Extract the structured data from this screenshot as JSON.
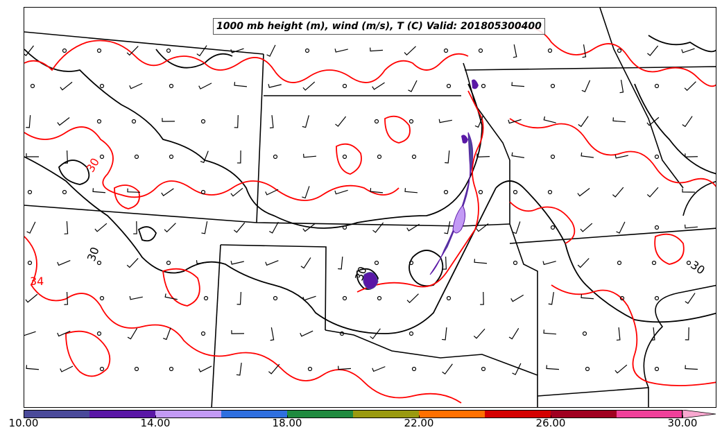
{
  "title": "1000 mb height (m), wind (m/s), T (C) Valid: 201805300400",
  "colors": {
    "height_contour": "#000000",
    "temperature_contour": "#ff0000",
    "state_borders": "#000000",
    "barbs": "#000000"
  },
  "contour_labels": [
    {
      "text": "30",
      "color": "#ff0000"
    },
    {
      "text": "34",
      "color": "#ff0000"
    },
    {
      "text": "30",
      "color": "#000000"
    },
    {
      "text": "30",
      "color": "#000000"
    },
    {
      "text": "30",
      "color": "#000000"
    }
  ],
  "colorbar": {
    "min": 10.0,
    "max": 30.0,
    "extend": "max",
    "bins": [
      {
        "from": 10,
        "to": 12,
        "color": "#4a4a9a"
      },
      {
        "from": 12,
        "to": 14,
        "color": "#5a17a6"
      },
      {
        "from": 14,
        "to": 16,
        "color": "#c39af5"
      },
      {
        "from": 16,
        "to": 18,
        "color": "#2f6fdf"
      },
      {
        "from": 18,
        "to": 20,
        "color": "#1f8a3f"
      },
      {
        "from": 20,
        "to": 22,
        "color": "#9a9a10"
      },
      {
        "from": 22,
        "to": 24,
        "color": "#ff7000"
      },
      {
        "from": 24,
        "to": 26,
        "color": "#d40000"
      },
      {
        "from": 26,
        "to": 28,
        "color": "#a00020"
      },
      {
        "from": 28,
        "to": 30,
        "color": "#f0409a"
      }
    ],
    "extend_color": "#f9a8d0",
    "ticks": [
      "10.00",
      "14.00",
      "18.00",
      "22.00",
      "26.00",
      "30.00"
    ]
  }
}
